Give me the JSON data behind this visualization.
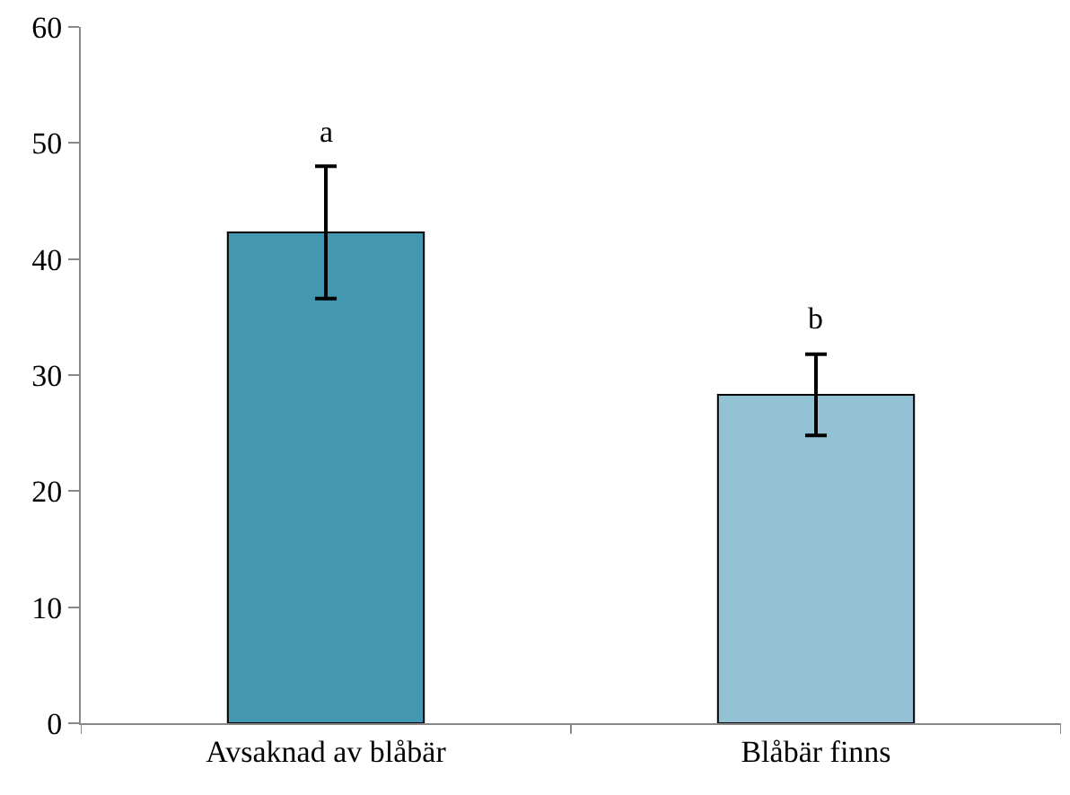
{
  "chart_data": {
    "type": "bar",
    "categories": [
      "Avsaknad av blåbär",
      "Blåbär finns"
    ],
    "values": [
      42.3,
      28.3
    ],
    "colors": [
      "#4397b0",
      "#92c2d4"
    ],
    "errors": [
      5.7,
      3.5
    ],
    "ylim": [
      0,
      60
    ],
    "yticks": [
      0,
      10,
      20,
      30,
      40,
      50,
      60
    ],
    "annotations": [
      "a",
      "b"
    ]
  }
}
